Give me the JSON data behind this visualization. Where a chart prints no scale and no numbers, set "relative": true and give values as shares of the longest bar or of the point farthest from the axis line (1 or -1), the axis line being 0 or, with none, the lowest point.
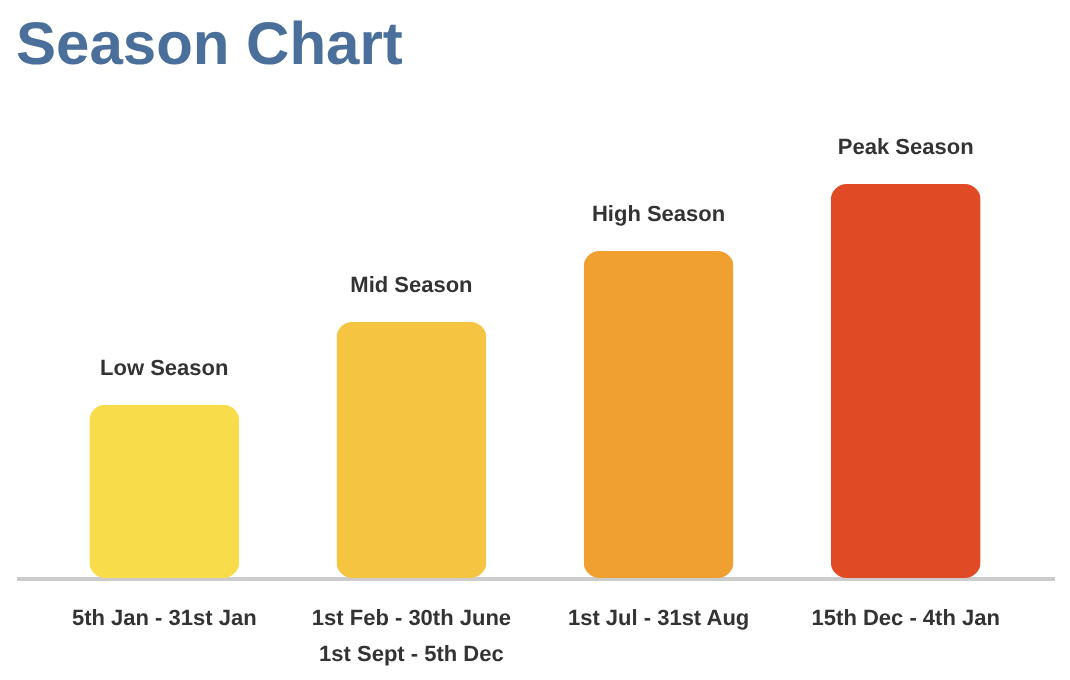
{
  "chart_data": {
    "type": "bar",
    "title": "Season Chart",
    "categories": [
      "5th Jan - 31st Jan",
      "1st Feb - 30th June\n1st Sept - 5th Dec",
      "1st Jul - 31st Aug",
      "15th Dec - 4th Jan"
    ],
    "values": [
      0.44,
      0.65,
      0.83,
      1
    ],
    "colors": [
      "#f9dc4a",
      "#f5c542",
      "#f0a030",
      "#e04a25"
    ],
    "annotations": [
      {
        "text": "Low Season",
        "x": "5th Jan - 31st Jan",
        "y": 0.44
      },
      {
        "text": "Mid Season",
        "x": "1st Feb - 30th June\n1st Sept - 5th Dec",
        "y": 0.65
      },
      {
        "text": "High Season",
        "x": "1st Jul - 31st Aug",
        "y": 0.83
      },
      {
        "text": "Peak Season",
        "x": "15th Dec - 4th Jan",
        "y": 1
      }
    ],
    "relative": true,
    "grid": false
  }
}
